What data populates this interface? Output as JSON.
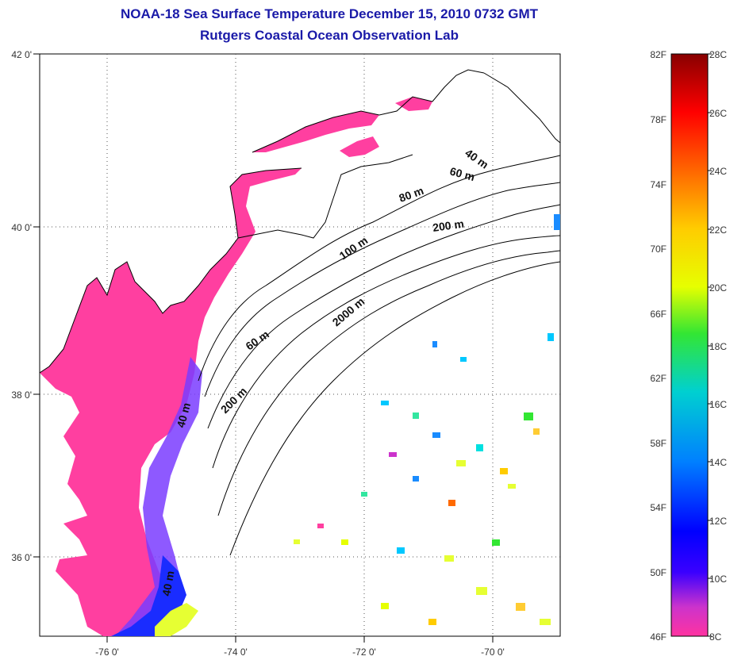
{
  "title": "NOAA-18 Sea Surface Temperature December 15, 2010 0732 GMT",
  "subtitle": "Rutgers Coastal Ocean Observation Lab",
  "map": {
    "lon_ticks": [
      "-76 0'",
      "-74 0'",
      "-72 0'",
      "-70 0'"
    ],
    "lat_ticks": [
      "42 0'",
      "40 0'",
      "38 0'",
      "36 0'"
    ],
    "contour_labels": [
      "40 m",
      "60 m",
      "80 m",
      "200 m",
      "100 m",
      "2000 m",
      "60 m",
      "200 m",
      "40 m",
      "40 m"
    ],
    "colors": {
      "cold": "#ff3fa0",
      "mid": "#3a3aff",
      "warm": "#ffe600",
      "land_outline": "#000000"
    }
  },
  "colorbar": {
    "f_labels": [
      "82F",
      "78F",
      "74F",
      "70F",
      "66F",
      "62F",
      "58F",
      "54F",
      "50F",
      "46F"
    ],
    "c_labels": [
      "28C",
      "26C",
      "24C",
      "22C",
      "20C",
      "18C",
      "16C",
      "14C",
      "12C",
      "10C",
      "8C"
    ],
    "stops": [
      "#ff33a0",
      "#cc33cc",
      "#7a1fcc",
      "#0000ff",
      "#0080ff",
      "#00cccc",
      "#33e633",
      "#e6ff00",
      "#ffcc00",
      "#ff6600",
      "#ff0000",
      "#990000"
    ]
  }
}
